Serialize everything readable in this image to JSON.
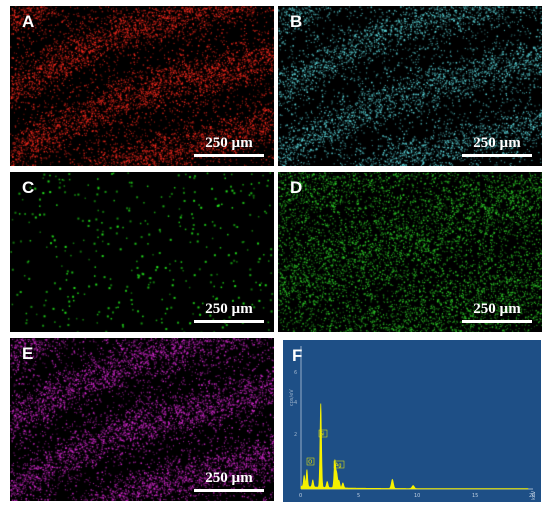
{
  "panels": [
    {
      "id": "A",
      "label": "A",
      "color": "#ff2a1e",
      "density": 0.62,
      "banded": true,
      "dot": 1,
      "scale_text": "250 µm"
    },
    {
      "id": "B",
      "label": "B",
      "color": "#5fe1e6",
      "density": 0.48,
      "banded": true,
      "dot": 1,
      "scale_text": "250 µm"
    },
    {
      "id": "C",
      "label": "C",
      "color": "#22e51c",
      "density": 0.1,
      "banded": false,
      "dot": 2,
      "scale_text": "250 µm"
    },
    {
      "id": "D",
      "label": "D",
      "color": "#2fd62a",
      "density": 0.4,
      "banded": false,
      "dot": 1,
      "scale_text": "250 µm"
    },
    {
      "id": "E",
      "label": "E",
      "color": "#d829d3",
      "density": 0.6,
      "banded": true,
      "dot": 1,
      "scale_text": "250 µm"
    }
  ],
  "spectrum": {
    "label": "F",
    "y_axis_label": "cps/eV",
    "x_axis_label": "keV",
    "x_ticks": [
      "0",
      "5",
      "10",
      "15",
      "20"
    ],
    "y_ticks": [
      "6",
      "4",
      "2"
    ],
    "peak_labels": [
      "O",
      "Si",
      "Ag"
    ],
    "x_range": [
      0,
      20
    ],
    "peaks": [
      {
        "x": 0.28,
        "h": 0.55
      },
      {
        "x": 0.52,
        "h": 0.85
      },
      {
        "x": 1.04,
        "h": 0.35
      },
      {
        "x": 1.74,
        "h": 4.2
      },
      {
        "x": 2.31,
        "h": 0.3
      },
      {
        "x": 2.98,
        "h": 1.35
      },
      {
        "x": 3.15,
        "h": 0.7
      },
      {
        "x": 3.35,
        "h": 0.35
      },
      {
        "x": 3.69,
        "h": 0.25
      },
      {
        "x": 8.05,
        "h": 0.45
      },
      {
        "x": 9.88,
        "h": 0.15
      }
    ],
    "color_spectrum": "#f6f100",
    "color_background": "#1e4f86"
  }
}
